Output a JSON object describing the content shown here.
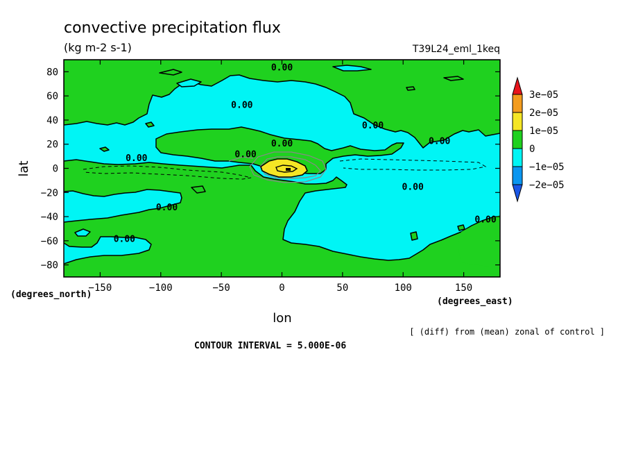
{
  "chart_data": {
    "type": "contour-map",
    "title": "convective precipitation flux",
    "units": "(kg m-2 s-1)",
    "dataset": "T39L24_eml_1keq",
    "xlabel": "lon",
    "ylabel": "lat",
    "x_units": "(degrees_east)",
    "y_units": "(degrees_north)",
    "xlim": [
      -180,
      180
    ],
    "ylim": [
      -90,
      90
    ],
    "x_ticks": [
      -150,
      -100,
      -50,
      0,
      50,
      100,
      150
    ],
    "y_ticks": [
      80,
      60,
      40,
      20,
      0,
      -20,
      -40,
      -60,
      -80
    ],
    "x_tick_labels": [
      "−150",
      "−100",
      "−50",
      "0",
      "50",
      "100",
      "150"
    ],
    "y_tick_labels": [
      "80",
      "60",
      "40",
      "20",
      "0",
      "−20",
      "−40",
      "−60",
      "−80"
    ],
    "contour_interval": "CONTOUR INTERVAL = 5.000E-06",
    "note": "[ (diff) from (mean) zonal of control ]",
    "contour_label": "0.00",
    "colorbar": {
      "levels": [
        3e-05,
        2e-05,
        1e-05,
        0,
        -1e-05,
        -2e-05
      ],
      "labels": [
        "3e−05",
        "2e−05",
        "1e−05",
        "0",
        "−1e−05",
        "−2e−05"
      ],
      "colors": [
        "#e8141c",
        "#f39c1e",
        "#f5e625",
        "#1fd11f",
        "#00f5f5",
        "#0a96f0",
        "#1a57e6"
      ]
    },
    "field_colors": {
      "positive": "#1fd11f",
      "negative": "#00f5f5",
      "high": "#f5e625",
      "higher": "#f39c1e"
    },
    "contour_labels": [
      {
        "lon": 0,
        "lat": 84
      },
      {
        "lon": -33,
        "lat": 53
      },
      {
        "lon": -120,
        "lat": 9
      },
      {
        "lon": -30,
        "lat": 12
      },
      {
        "lon": 0,
        "lat": 21
      },
      {
        "lon": 75,
        "lat": 36
      },
      {
        "lon": 130,
        "lat": 23
      },
      {
        "lon": 108,
        "lat": -15
      },
      {
        "lon": -95,
        "lat": -32
      },
      {
        "lon": -130,
        "lat": -58
      },
      {
        "lon": 168,
        "lat": -42
      }
    ]
  }
}
